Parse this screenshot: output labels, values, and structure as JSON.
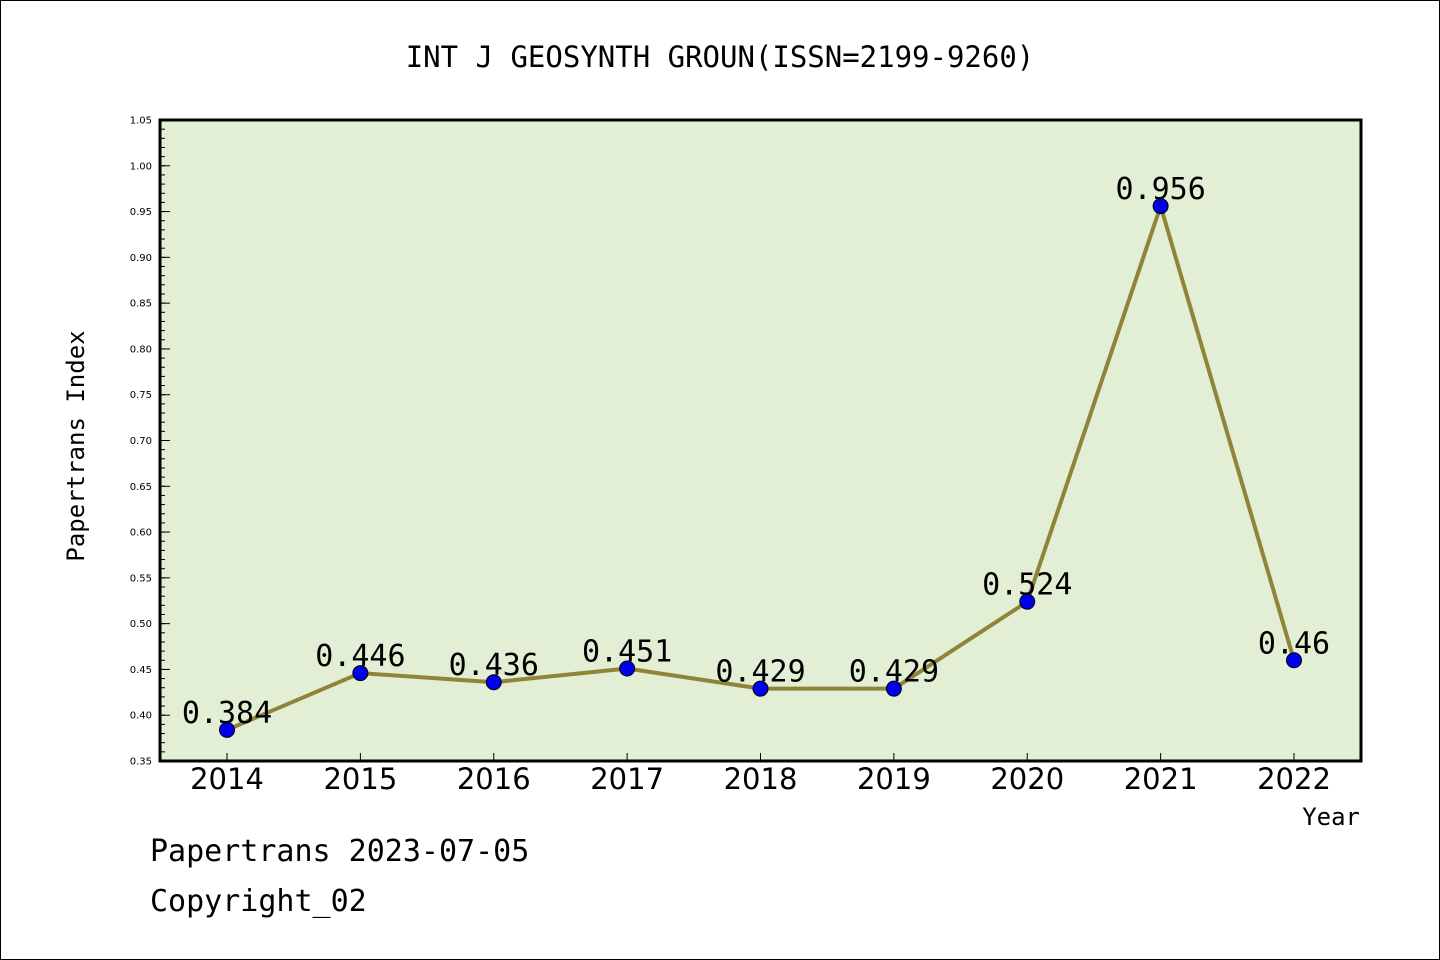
{
  "chart_data": {
    "type": "line",
    "title": "INT J GEOSYNTH GROUN(ISSN=2199-9260)",
    "xlabel": "Year",
    "ylabel": "Papertrans Index",
    "categories": [
      "2014",
      "2015",
      "2016",
      "2017",
      "2018",
      "2019",
      "2020",
      "2021",
      "2022"
    ],
    "series": [
      {
        "values": [
          0.384,
          0.446,
          0.436,
          0.451,
          0.429,
          0.429,
          0.524,
          0.956,
          0.46
        ],
        "labels": [
          "0.384",
          "0.446",
          "0.436",
          "0.451",
          "0.429",
          "0.429",
          "0.524",
          "0.956",
          "0.46"
        ]
      }
    ],
    "ylim": [
      0.35,
      1.05
    ],
    "yticks": [
      "0.35",
      "0.40",
      "0.45",
      "0.50",
      "0.55",
      "0.60",
      "0.65",
      "0.70",
      "0.75",
      "0.80",
      "0.85",
      "0.90",
      "0.95",
      "1.00",
      "1.05"
    ],
    "grid": false,
    "legend": "none",
    "colors": {
      "plot_background": "#e2efd5",
      "line": "#8f8437",
      "marker": "#0000ee"
    }
  },
  "footer": {
    "line1": "Papertrans 2023-07-05",
    "line2": "Copyright_02"
  }
}
